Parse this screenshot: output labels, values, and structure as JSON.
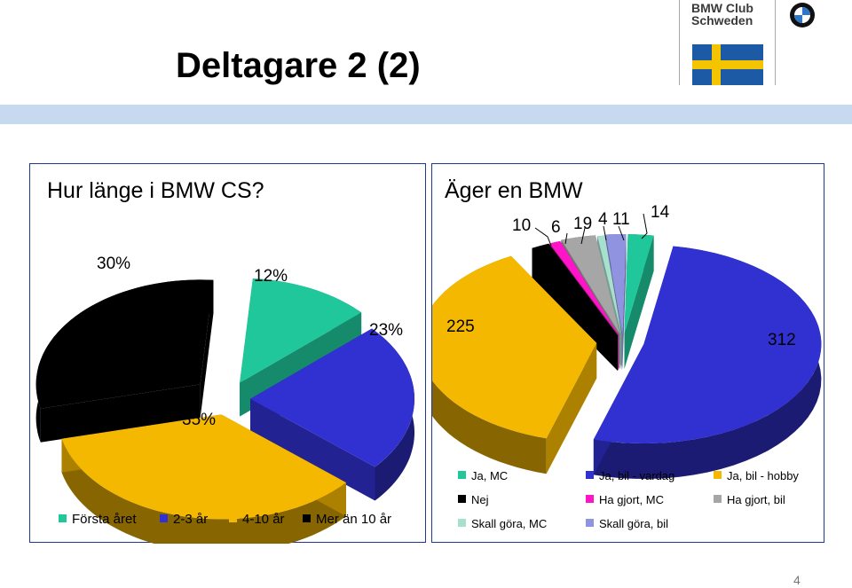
{
  "slide": {
    "title": "Deltagare 2 (2)",
    "page_number": "4",
    "band_color": "#c6d9ef"
  },
  "logo": {
    "name_lines": "BMW Club\nSchweden",
    "flag": {
      "blue": "#1c5aa6",
      "yellow": "#f5c400"
    },
    "roundel_icon": "bmw-roundel-icon"
  },
  "chart_data": [
    {
      "type": "pie",
      "title": "Hur länge i BMW CS?",
      "categories": [
        "Första året",
        "2-3 år",
        "4-10 år",
        "Mer än 10 år"
      ],
      "values": [
        12,
        23,
        35,
        30
      ],
      "value_labels": [
        "12%",
        "23%",
        "35%",
        "30%"
      ],
      "colors": [
        "#1fc79a",
        "#3131d1",
        "#f5b800",
        "#000000"
      ],
      "exploded": true,
      "style": "3d",
      "legend_position": "bottom"
    },
    {
      "type": "pie",
      "title": "Äger en BMW",
      "categories": [
        "Ja, MC",
        "Ja, bil - vardag",
        "Ja, bil - hobby",
        "Nej",
        "Ha gjort, MC",
        "Ha gjort, bil",
        "Skall göra, MC",
        "Skall göra, bil"
      ],
      "values": [
        14,
        312,
        225,
        10,
        6,
        19,
        4,
        11
      ],
      "value_labels": [
        "14",
        "312",
        "225",
        "10",
        "6",
        "19",
        "4",
        "11"
      ],
      "colors": [
        "#1fc79a",
        "#3131d1",
        "#f5b800",
        "#000000",
        "#ff14c8",
        "#a6a6a6",
        "#a8e0cf",
        "#8f93e0"
      ],
      "exploded": true,
      "style": "3d",
      "legend_position": "bottom"
    }
  ]
}
